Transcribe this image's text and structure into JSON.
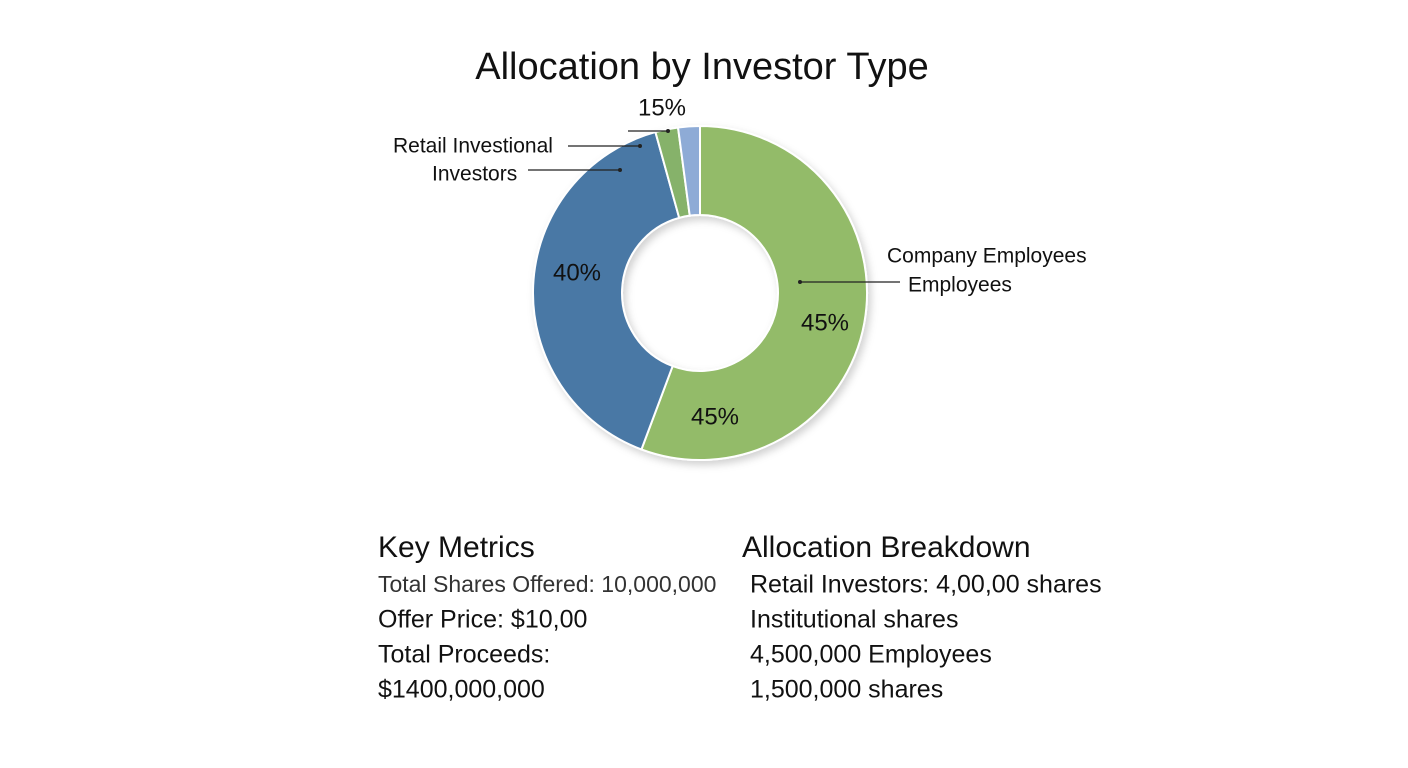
{
  "chart_data": {
    "type": "donut",
    "title": "Allocation by Investor Type",
    "values": [
      55.7,
      40,
      2.2,
      2.1
    ],
    "colors": [
      "#93bb69",
      "#4a78a5",
      "#86b26a",
      "#8eabd6"
    ],
    "annotations": [
      "15%",
      "Retail Investional",
      "Investors",
      "Company Employees",
      "Employees",
      "40%",
      "45%",
      "45%"
    ]
  },
  "metrics": {
    "title": "Key Metrics",
    "lines": [
      "Total Shares Offered:  10,000,000",
      "Offer Price: $10,00",
      "Total Proceeds:",
      "$1400,000,000"
    ]
  },
  "breakdown": {
    "title": "Allocation Breakdown",
    "lines": [
      "Retail Investors: 4,00,00 shares",
      "Institutional shares",
      "4,500,000 Employees",
      "1,500,000 shares"
    ]
  }
}
